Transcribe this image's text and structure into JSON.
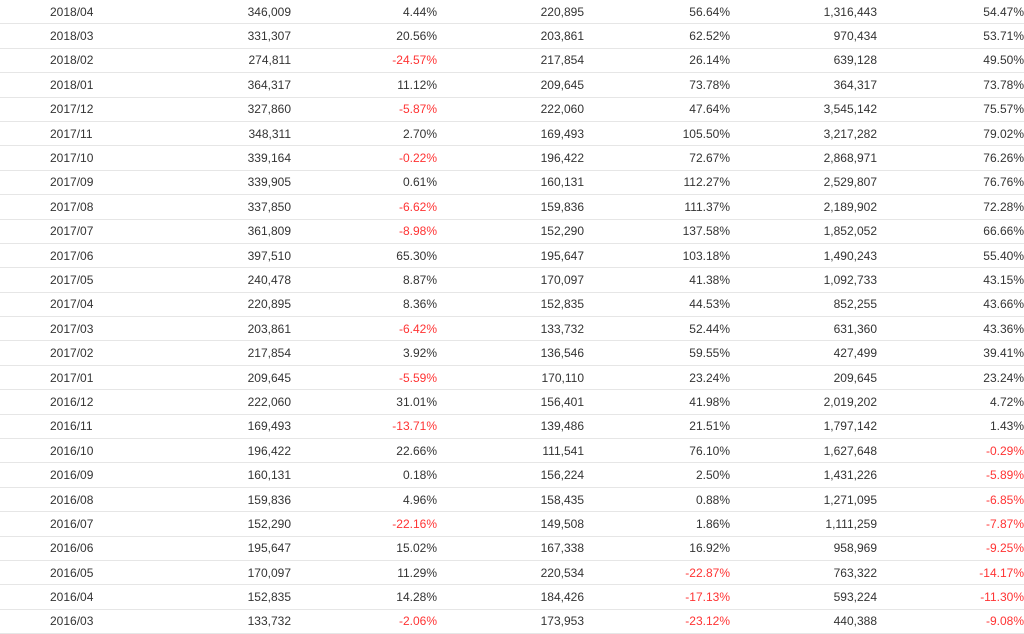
{
  "table": {
    "rows": [
      [
        "2018/04",
        "346,009",
        "4.44%",
        "220,895",
        "56.64%",
        "1,316,443",
        "54.47%"
      ],
      [
        "2018/03",
        "331,307",
        "20.56%",
        "203,861",
        "62.52%",
        "970,434",
        "53.71%"
      ],
      [
        "2018/02",
        "274,811",
        "-24.57%",
        "217,854",
        "26.14%",
        "639,128",
        "49.50%"
      ],
      [
        "2018/01",
        "364,317",
        "11.12%",
        "209,645",
        "73.78%",
        "364,317",
        "73.78%"
      ],
      [
        "2017/12",
        "327,860",
        "-5.87%",
        "222,060",
        "47.64%",
        "3,545,142",
        "75.57%"
      ],
      [
        "2017/11",
        "348,311",
        "2.70%",
        "169,493",
        "105.50%",
        "3,217,282",
        "79.02%"
      ],
      [
        "2017/10",
        "339,164",
        "-0.22%",
        "196,422",
        "72.67%",
        "2,868,971",
        "76.26%"
      ],
      [
        "2017/09",
        "339,905",
        "0.61%",
        "160,131",
        "112.27%",
        "2,529,807",
        "76.76%"
      ],
      [
        "2017/08",
        "337,850",
        "-6.62%",
        "159,836",
        "111.37%",
        "2,189,902",
        "72.28%"
      ],
      [
        "2017/07",
        "361,809",
        "-8.98%",
        "152,290",
        "137.58%",
        "1,852,052",
        "66.66%"
      ],
      [
        "2017/06",
        "397,510",
        "65.30%",
        "195,647",
        "103.18%",
        "1,490,243",
        "55.40%"
      ],
      [
        "2017/05",
        "240,478",
        "8.87%",
        "170,097",
        "41.38%",
        "1,092,733",
        "43.15%"
      ],
      [
        "2017/04",
        "220,895",
        "8.36%",
        "152,835",
        "44.53%",
        "852,255",
        "43.66%"
      ],
      [
        "2017/03",
        "203,861",
        "-6.42%",
        "133,732",
        "52.44%",
        "631,360",
        "43.36%"
      ],
      [
        "2017/02",
        "217,854",
        "3.92%",
        "136,546",
        "59.55%",
        "427,499",
        "39.41%"
      ],
      [
        "2017/01",
        "209,645",
        "-5.59%",
        "170,110",
        "23.24%",
        "209,645",
        "23.24%"
      ],
      [
        "2016/12",
        "222,060",
        "31.01%",
        "156,401",
        "41.98%",
        "2,019,202",
        "4.72%"
      ],
      [
        "2016/11",
        "169,493",
        "-13.71%",
        "139,486",
        "21.51%",
        "1,797,142",
        "1.43%"
      ],
      [
        "2016/10",
        "196,422",
        "22.66%",
        "111,541",
        "76.10%",
        "1,627,648",
        "-0.29%"
      ],
      [
        "2016/09",
        "160,131",
        "0.18%",
        "156,224",
        "2.50%",
        "1,431,226",
        "-5.89%"
      ],
      [
        "2016/08",
        "159,836",
        "4.96%",
        "158,435",
        "0.88%",
        "1,271,095",
        "-6.85%"
      ],
      [
        "2016/07",
        "152,290",
        "-22.16%",
        "149,508",
        "1.86%",
        "1,111,259",
        "-7.87%"
      ],
      [
        "2016/06",
        "195,647",
        "15.02%",
        "167,338",
        "16.92%",
        "958,969",
        "-9.25%"
      ],
      [
        "2016/05",
        "170,097",
        "11.29%",
        "220,534",
        "-22.87%",
        "763,322",
        "-14.17%"
      ],
      [
        "2016/04",
        "152,835",
        "14.28%",
        "184,426",
        "-17.13%",
        "593,224",
        "-11.30%"
      ],
      [
        "2016/03",
        "133,732",
        "-2.06%",
        "173,953",
        "-23.12%",
        "440,388",
        "-9.08%"
      ]
    ]
  },
  "colors": {
    "negative": "#ff3333",
    "text": "#333333",
    "divider": "#e6e6e6"
  }
}
